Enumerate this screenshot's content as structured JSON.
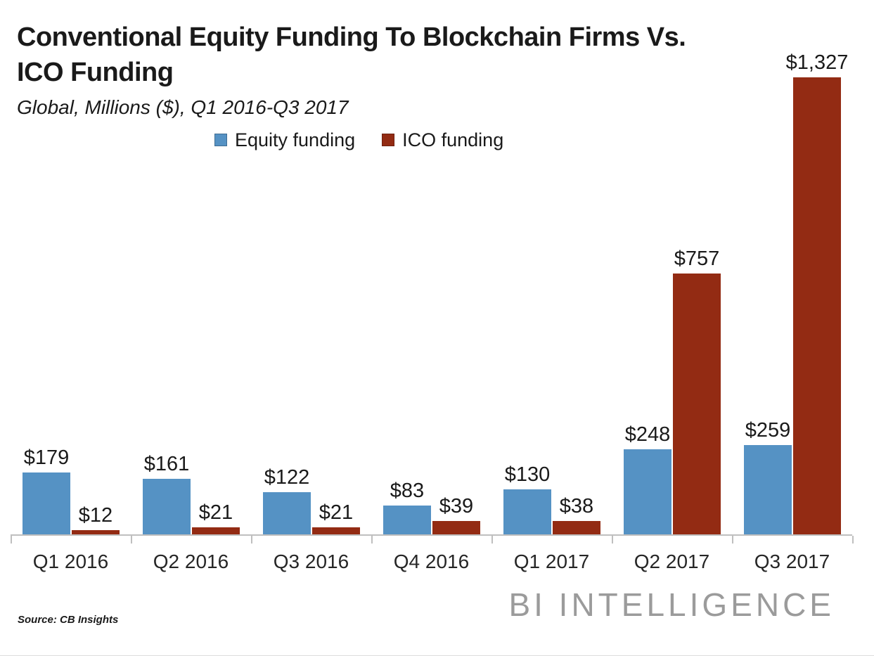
{
  "header": {
    "title_line1": "Conventional Equity Funding To Blockchain Firms Vs.",
    "title_line2": "ICO Funding",
    "subtitle": "Global, Millions ($), Q1 2016-Q3 2017"
  },
  "legend": {
    "items": [
      {
        "label": "Equity funding",
        "color": "#5592C4"
      },
      {
        "label": "ICO funding",
        "color": "#932B13"
      }
    ]
  },
  "chart_data": {
    "type": "bar",
    "title": "Conventional Equity Funding To Blockchain Firms Vs. ICO Funding",
    "subtitle": "Global, Millions ($), Q1 2016-Q3 2017",
    "xlabel": "",
    "ylabel": "",
    "categories": [
      "Q1 2016",
      "Q2 2016",
      "Q3 2016",
      "Q4 2016",
      "Q1 2017",
      "Q2 2017",
      "Q3 2017"
    ],
    "series": [
      {
        "name": "Equity funding",
        "color": "#5592C4",
        "values": [
          179,
          161,
          122,
          83,
          130,
          248,
          259
        ],
        "value_labels": [
          "$179",
          "$161",
          "$122",
          "$83",
          "$130",
          "$248",
          "$259"
        ]
      },
      {
        "name": "ICO funding",
        "color": "#932B13",
        "values": [
          12,
          21,
          21,
          39,
          38,
          757,
          1327
        ],
        "value_labels": [
          "$12",
          "$21",
          "$21",
          "$39",
          "$38",
          "$757",
          "$1,327"
        ]
      }
    ],
    "value_prefix": "$",
    "ylim": [
      0,
      1327
    ],
    "grid": false,
    "y_axis_visible": false,
    "legend_position": "top-center",
    "axis_color": "#BFBFBF"
  },
  "footer": {
    "source": "Source: CB Insights",
    "brand": "BI INTELLIGENCE"
  }
}
